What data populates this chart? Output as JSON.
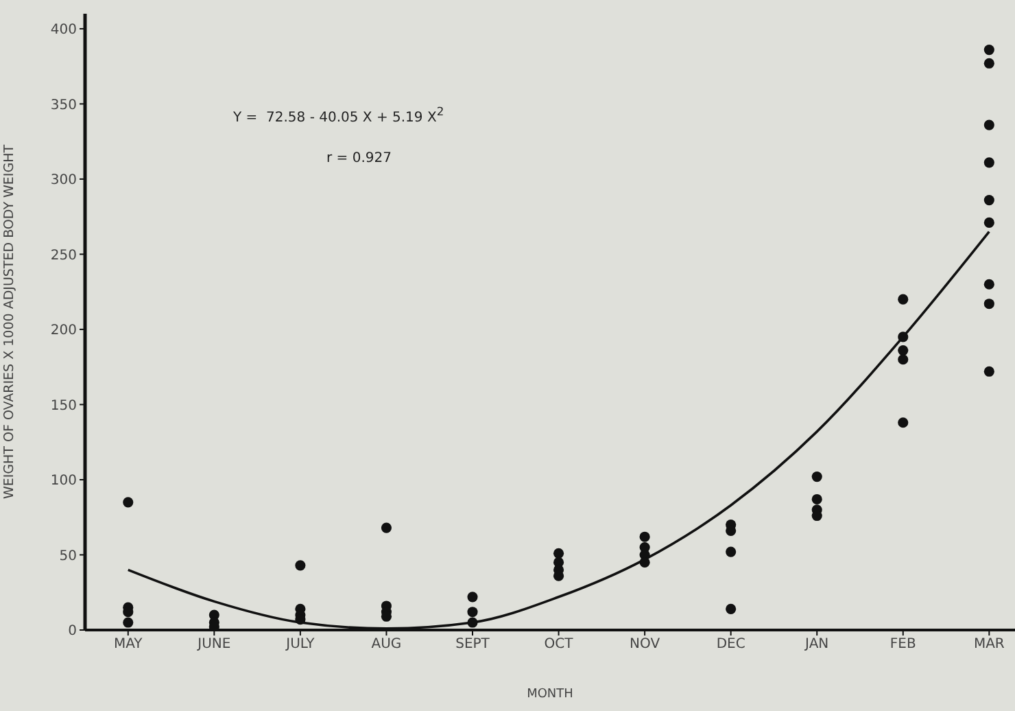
{
  "chart_data": {
    "type": "scatter",
    "xlabel": "MONTH",
    "ylabel": "WEIGHT OF OVARIES X 1000    ADJUSTED BODY WEIGHT",
    "categories": [
      "MAY",
      "JUNE",
      "JULY",
      "AUG",
      "SEPT",
      "OCT",
      "NOV",
      "DEC",
      "JAN",
      "FEB",
      "MAR"
    ],
    "ylim": [
      0,
      410
    ],
    "yticks": [
      0,
      50,
      100,
      150,
      200,
      250,
      300,
      350,
      400
    ],
    "annotations": [
      "Y =  72.58 - 40.05 X + 5.19 X$^{2}$",
      "r = 0.927"
    ],
    "series": [
      {
        "color": "#111111",
        "marker": "circle",
        "x": [
          "MAY",
          "MAY",
          "MAY",
          "MAY",
          "JUNE",
          "JUNE",
          "JUNE",
          "JULY",
          "JULY",
          "JULY",
          "JULY",
          "AUG",
          "AUG",
          "AUG",
          "AUG",
          "SEPT",
          "SEPT",
          "SEPT",
          "OCT",
          "OCT",
          "OCT",
          "OCT",
          "NOV",
          "NOV",
          "NOV",
          "NOV",
          "DEC",
          "DEC",
          "DEC",
          "DEC",
          "JAN",
          "JAN",
          "JAN",
          "JAN",
          "FEB",
          "FEB",
          "FEB",
          "FEB",
          "FEB",
          "MAR",
          "MAR",
          "MAR",
          "MAR",
          "MAR",
          "MAR",
          "MAR",
          "MAR",
          "MAR"
        ],
        "values": [
          85,
          15,
          12,
          5,
          10,
          5,
          2,
          43,
          14,
          10,
          7,
          68,
          16,
          12,
          9,
          22,
          12,
          5,
          51,
          45,
          40,
          36,
          62,
          55,
          50,
          45,
          70,
          66,
          52,
          14,
          102,
          87,
          80,
          76,
          220,
          195,
          186,
          180,
          138,
          386,
          377,
          336,
          311,
          286,
          271,
          230,
          217,
          172
        ]
      },
      {
        "type": "line",
        "color": "#111111",
        "line_style": "solid",
        "marker": "none",
        "x": [
          "MAY",
          "JUNE",
          "JULY",
          "AUG",
          "SEPT",
          "OCT",
          "NOV",
          "DEC",
          "JAN",
          "FEB",
          "MAR"
        ],
        "values": [
          40,
          19,
          5,
          1,
          5,
          22,
          47,
          83,
          132,
          195,
          265
        ]
      }
    ]
  }
}
